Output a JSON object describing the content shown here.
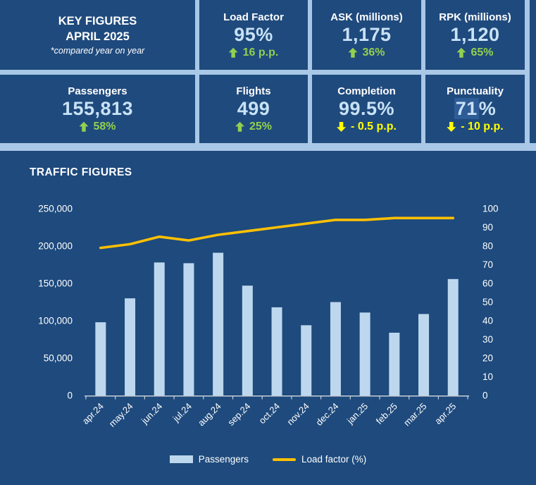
{
  "colors": {
    "background": "#1E4A7D",
    "card_fill": "#1F4A7D",
    "grid_border": "#A9C7E6",
    "value_text": "#C9E2F6",
    "positive": "#92D050",
    "negative": "#FFFF00",
    "bar_fill": "#BDD7EE",
    "line_stroke": "#FFC000",
    "highlight_box": "#2E5C97"
  },
  "header": {
    "title_line1": "KEY FIGURES",
    "title_line2": "APRIL 2025",
    "subtitle": "*compared year on year"
  },
  "kpis": [
    {
      "id": "load-factor",
      "label": "Load Factor",
      "value_main": "95%",
      "value_suffix": "",
      "highlighted": false,
      "direction": "up",
      "delta": "16 p.p."
    },
    {
      "id": "ask",
      "label": "ASK (millions)",
      "value_main": "1,175",
      "value_suffix": "",
      "highlighted": false,
      "direction": "up",
      "delta": "36%"
    },
    {
      "id": "rpk",
      "label": "RPK (millions)",
      "value_main": "1,120",
      "value_suffix": "",
      "highlighted": false,
      "direction": "up",
      "delta": "65%"
    },
    {
      "id": "passengers",
      "label": "Passengers",
      "value_main": "155,813",
      "value_suffix": "",
      "highlighted": false,
      "direction": "up",
      "delta": "58%"
    },
    {
      "id": "flights",
      "label": "Flights",
      "value_main": "499",
      "value_suffix": "",
      "highlighted": false,
      "direction": "up",
      "delta": "25%"
    },
    {
      "id": "completion",
      "label": "Completion",
      "value_main": "99.5%",
      "value_suffix": "",
      "highlighted": false,
      "direction": "down",
      "delta": "- 0.5 p.p."
    },
    {
      "id": "punctuality",
      "label": "Punctuality",
      "value_main": "71",
      "value_suffix": "%",
      "highlighted": true,
      "direction": "down",
      "delta": "- 10 p.p."
    }
  ],
  "chart_data": {
    "type": "bar",
    "title": "TRAFFIC FIGURES",
    "categories": [
      "apr.24",
      "may.24",
      "jun.24",
      "jul.24",
      "aug.24",
      "sep.24",
      "oct.24",
      "nov.24",
      "dec.24",
      "jan.25",
      "feb.25",
      "mar.25",
      "apr.25"
    ],
    "series": [
      {
        "name": "Passengers",
        "type": "bar",
        "axis": "left",
        "values": [
          98000,
          130000,
          178000,
          177000,
          191000,
          147000,
          118000,
          94000,
          125000,
          111000,
          84000,
          109000,
          155813
        ]
      },
      {
        "name": "Load factor (%)",
        "type": "line",
        "axis": "right",
        "values": [
          79,
          81,
          85,
          83,
          86,
          88,
          90,
          92,
          94,
          94,
          95,
          95,
          95
        ]
      }
    ],
    "left_axis": {
      "min": 0,
      "max": 250000,
      "step": 50000,
      "tick_labels": [
        "0",
        "50,000",
        "100,000",
        "150,000",
        "200,000",
        "250,000"
      ]
    },
    "right_axis": {
      "min": 0,
      "max": 100,
      "step": 10,
      "tick_labels": [
        "0",
        "10",
        "20",
        "30",
        "40",
        "50",
        "60",
        "70",
        "80",
        "90",
        "100"
      ]
    },
    "grid": false,
    "legend_position": "bottom"
  }
}
